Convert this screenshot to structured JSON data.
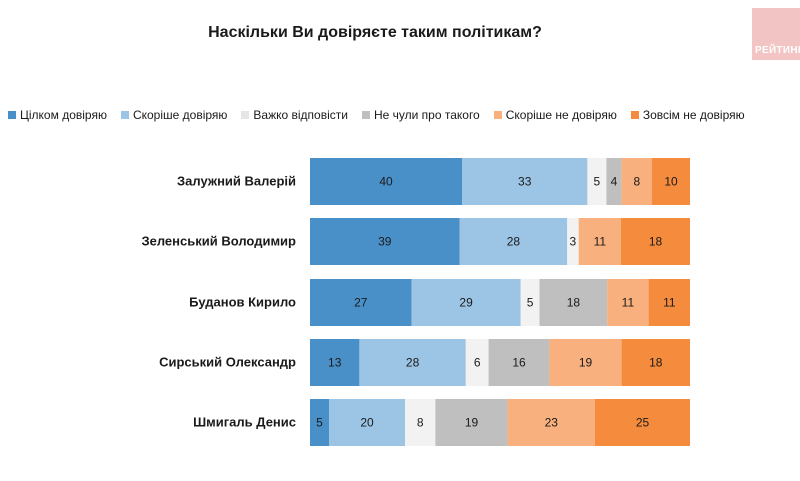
{
  "chart_data": {
    "type": "bar",
    "orientation": "horizontal",
    "stacked": true,
    "title": "Наскільки Ви довіряєте таким політикам?",
    "categories": [
      "Залужний Валерій",
      "Зеленський Володимир",
      "Буданов Кирило",
      "Сирський Олександр",
      "Шмигаль Денис"
    ],
    "series": [
      {
        "name": "Цілком довіряю",
        "color": "#4a90c8",
        "values": [
          40,
          39,
          27,
          13,
          5
        ]
      },
      {
        "name": "Скоріше довіряю",
        "color": "#9cc4e4",
        "values": [
          33,
          28,
          29,
          28,
          20
        ]
      },
      {
        "name": "Важко відповісти",
        "color": "#f2f2f2",
        "values": [
          5,
          3,
          5,
          6,
          8
        ]
      },
      {
        "name": "Не чули про такого",
        "color": "#bfbfbf",
        "values": [
          4,
          0,
          18,
          16,
          19
        ]
      },
      {
        "name": "Скоріше не довіряю",
        "color": "#f7b07e",
        "values": [
          8,
          11,
          11,
          19,
          23
        ]
      },
      {
        "name": "Зовсім не довіряю",
        "color": "#f58b3c",
        "values": [
          10,
          18,
          11,
          18,
          25
        ]
      }
    ],
    "legend_position": "top",
    "grid": false
  },
  "logo": {
    "text": "РЕЙТИНГ"
  }
}
